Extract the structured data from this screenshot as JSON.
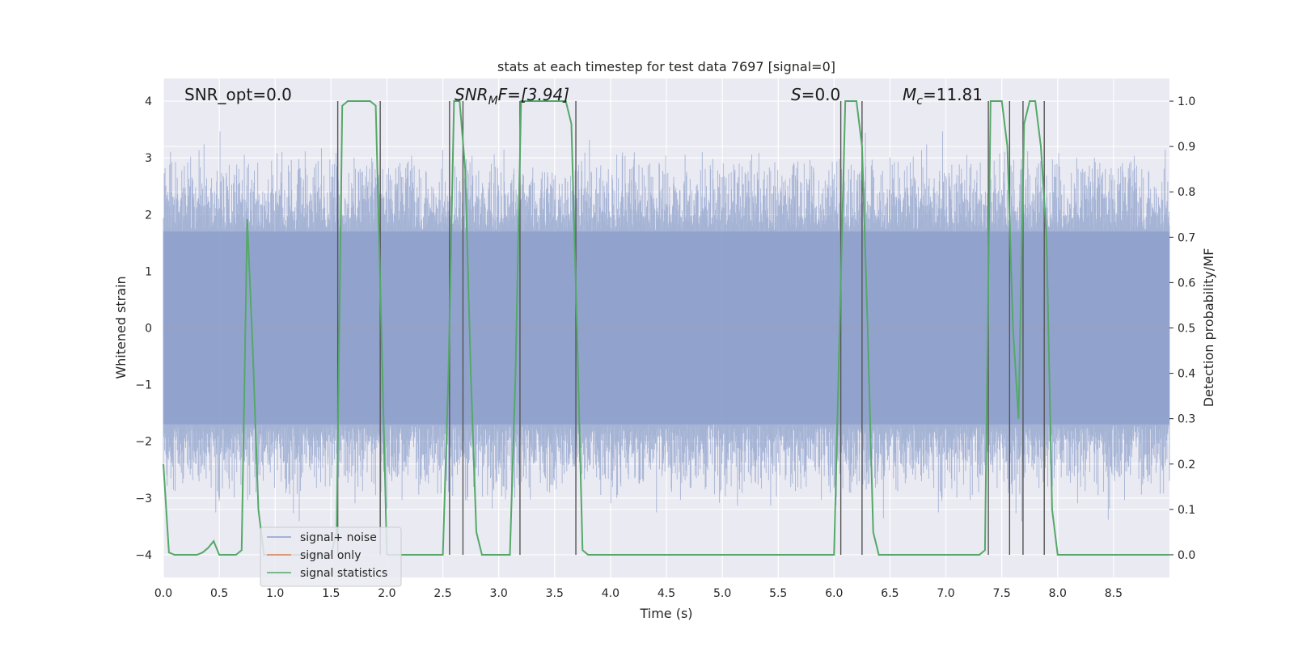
{
  "chart_data": {
    "type": "line",
    "title": "stats at each timestep for test data 7697 [signal=0]",
    "xlabel": "Time (s)",
    "ylabel": "Whitened strain",
    "ylabel_right": "Detection probability/MF",
    "xlim": [
      0,
      9.0
    ],
    "ylim": [
      -4.4,
      4.4
    ],
    "ylim_right": [
      -0.05,
      1.05
    ],
    "x_ticks": [
      "0.0",
      "0.5",
      "1.0",
      "1.5",
      "2.0",
      "2.5",
      "3.0",
      "3.5",
      "4.0",
      "4.5",
      "5.0",
      "5.5",
      "6.0",
      "6.5",
      "7.0",
      "7.5",
      "8.0",
      "8.5"
    ],
    "y_ticks": [
      "4",
      "3",
      "2",
      "1",
      "0",
      "−1",
      "−2",
      "−3",
      "−4"
    ],
    "y_ticks_right": [
      "1.0",
      "0.9",
      "0.8",
      "0.7",
      "0.6",
      "0.5",
      "0.4",
      "0.3",
      "0.2",
      "0.1",
      "0.0"
    ],
    "grid": true,
    "legend_position": "lower-left",
    "annotations": {
      "snr_opt": "SNR_opt=0.0",
      "snr_mf_base": "SNR",
      "snr_mf_sub": "M",
      "snr_mf_tail": "F=[3.94]",
      "s": "S",
      "s_tail": "=0.0",
      "mc_base": "M",
      "mc_sub": "c",
      "mc_tail": "=11.81"
    },
    "series": [
      {
        "name": "signal+ noise",
        "color": "#8da0cb",
        "kind": "noise",
        "envelope_abs": 3.2,
        "core_abs": 1.7
      },
      {
        "name": "signal only",
        "color": "#dd8452",
        "kind": "flat",
        "values": [
          0
        ]
      },
      {
        "name": "signal statistics",
        "color": "#55a868",
        "kind": "line",
        "x": [
          0.0,
          0.05,
          0.1,
          0.15,
          0.2,
          0.25,
          0.3,
          0.35,
          0.4,
          0.45,
          0.5,
          0.55,
          0.6,
          0.65,
          0.7,
          0.75,
          0.8,
          0.85,
          0.9,
          1.0,
          1.1,
          1.2,
          1.3,
          1.4,
          1.5,
          1.55,
          1.6,
          1.65,
          1.7,
          1.75,
          1.8,
          1.85,
          1.9,
          1.95,
          2.0,
          2.05,
          2.1,
          2.2,
          2.3,
          2.4,
          2.5,
          2.55,
          2.6,
          2.65,
          2.7,
          2.75,
          2.8,
          2.85,
          2.9,
          3.0,
          3.1,
          3.15,
          3.2,
          3.25,
          3.3,
          3.35,
          3.4,
          3.5,
          3.6,
          3.65,
          3.7,
          3.75,
          3.8,
          4.0,
          4.5,
          5.0,
          5.5,
          6.0,
          6.05,
          6.1,
          6.15,
          6.2,
          6.25,
          6.3,
          6.35,
          6.4,
          6.5,
          7.0,
          7.3,
          7.35,
          7.4,
          7.45,
          7.5,
          7.55,
          7.6,
          7.65,
          7.7,
          7.75,
          7.8,
          7.85,
          7.9,
          7.95,
          8.0,
          8.5,
          9.0
        ],
        "y": [
          0.2,
          0.005,
          0.0,
          0.0,
          0.0,
          0.0,
          0.0,
          0.005,
          0.015,
          0.03,
          0.0,
          0.0,
          0.0,
          0.0,
          0.01,
          0.74,
          0.45,
          0.1,
          0.0,
          0.0,
          0.0,
          0.0,
          0.0,
          0.0,
          0.0,
          0.05,
          0.99,
          1.0,
          1.0,
          1.0,
          1.0,
          1.0,
          0.99,
          0.5,
          0.0,
          0.0,
          0.0,
          0.0,
          0.0,
          0.0,
          0.0,
          0.4,
          1.0,
          1.0,
          0.85,
          0.4,
          0.05,
          0.0,
          0.0,
          0.0,
          0.0,
          0.4,
          1.0,
          1.0,
          1.0,
          1.0,
          1.0,
          1.0,
          1.0,
          0.95,
          0.5,
          0.01,
          0.0,
          0.0,
          0.0,
          0.0,
          0.0,
          0.0,
          0.5,
          1.0,
          1.0,
          1.0,
          0.9,
          0.5,
          0.05,
          0.0,
          0.0,
          0.0,
          0.0,
          0.01,
          1.0,
          1.0,
          1.0,
          0.9,
          0.5,
          0.3,
          0.95,
          1.0,
          1.0,
          0.9,
          0.7,
          0.1,
          0.0,
          0.0,
          0.0
        ]
      },
      {
        "name": "",
        "color": "#555555",
        "kind": "vlines",
        "x": [
          1.56,
          1.94,
          2.56,
          2.68,
          3.19,
          3.69,
          6.06,
          6.25,
          7.38,
          7.57,
          7.69,
          7.88
        ]
      }
    ]
  },
  "legend": {
    "items": [
      {
        "label": "signal+ noise",
        "color": "#8da0cb"
      },
      {
        "label": "signal only",
        "color": "#dd8452"
      },
      {
        "label": "signal statistics",
        "color": "#55a868"
      }
    ]
  }
}
